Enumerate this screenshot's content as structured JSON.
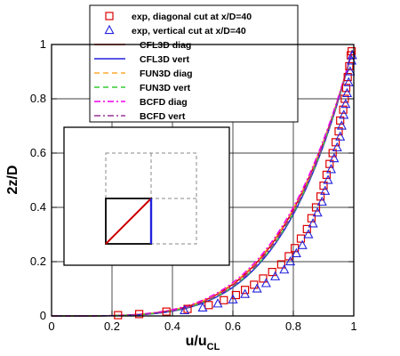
{
  "chart_data": {
    "type": "line",
    "xlabel": "u/u",
    "xlabel_sub": "CL",
    "ylabel": "2z/D",
    "xlim": [
      0,
      1
    ],
    "ylim": [
      0,
      1
    ],
    "xticks": [
      "0",
      "0.2",
      "0.4",
      "0.6",
      "0.8",
      "1"
    ],
    "yticks": [
      "0",
      "0.2",
      "0.4",
      "0.6",
      "0.8",
      "1"
    ],
    "grid": true,
    "legend_position": "top-center",
    "series": [
      {
        "name": "exp, diagonal cut at x/D=40",
        "kind": "markers",
        "marker": "square",
        "color": "#dd0000",
        "points": [
          [
            0.22,
            0.003
          ],
          [
            0.29,
            0.007
          ],
          [
            0.38,
            0.016
          ],
          [
            0.45,
            0.026
          ],
          [
            0.52,
            0.04
          ],
          [
            0.57,
            0.058
          ],
          [
            0.61,
            0.077
          ],
          [
            0.64,
            0.096
          ],
          [
            0.67,
            0.115
          ],
          [
            0.7,
            0.138
          ],
          [
            0.73,
            0.162
          ],
          [
            0.76,
            0.19
          ],
          [
            0.785,
            0.22
          ],
          [
            0.805,
            0.25
          ],
          [
            0.825,
            0.285
          ],
          [
            0.845,
            0.32
          ],
          [
            0.86,
            0.36
          ],
          [
            0.875,
            0.4
          ],
          [
            0.89,
            0.44
          ],
          [
            0.9,
            0.48
          ],
          [
            0.91,
            0.52
          ],
          [
            0.92,
            0.56
          ],
          [
            0.93,
            0.6
          ],
          [
            0.94,
            0.64
          ],
          [
            0.95,
            0.68
          ],
          [
            0.955,
            0.72
          ],
          [
            0.965,
            0.76
          ],
          [
            0.97,
            0.8
          ],
          [
            0.975,
            0.84
          ],
          [
            0.98,
            0.88
          ],
          [
            0.985,
            0.92
          ],
          [
            0.99,
            0.96
          ],
          [
            0.993,
            0.975
          ]
        ]
      },
      {
        "name": "exp, vertical cut at x/D=40",
        "kind": "markers",
        "marker": "triangle",
        "color": "#2222dd",
        "points": [
          [
            0.44,
            0.02
          ],
          [
            0.5,
            0.03
          ],
          [
            0.55,
            0.045
          ],
          [
            0.6,
            0.06
          ],
          [
            0.64,
            0.08
          ],
          [
            0.68,
            0.1
          ],
          [
            0.71,
            0.12
          ],
          [
            0.74,
            0.145
          ],
          [
            0.77,
            0.17
          ],
          [
            0.79,
            0.2
          ],
          [
            0.81,
            0.23
          ],
          [
            0.83,
            0.26
          ],
          [
            0.85,
            0.3
          ],
          [
            0.865,
            0.34
          ],
          [
            0.88,
            0.38
          ],
          [
            0.895,
            0.42
          ],
          [
            0.905,
            0.46
          ],
          [
            0.915,
            0.5
          ],
          [
            0.925,
            0.54
          ],
          [
            0.935,
            0.58
          ],
          [
            0.945,
            0.62
          ],
          [
            0.955,
            0.66
          ],
          [
            0.96,
            0.7
          ],
          [
            0.967,
            0.74
          ],
          [
            0.973,
            0.78
          ],
          [
            0.978,
            0.82
          ],
          [
            0.983,
            0.86
          ],
          [
            0.988,
            0.9
          ],
          [
            0.993,
            0.94
          ],
          [
            0.995,
            0.96
          ]
        ]
      },
      {
        "name": "CFL3D diag",
        "kind": "line",
        "dash": "solid",
        "color": "#dd0000",
        "shape": 4.2,
        "xmin": 0.0,
        "xmax": 0.995
      },
      {
        "name": "CFL3D vert",
        "kind": "line",
        "dash": "solid",
        "color": "#2222dd",
        "shape": 4.4,
        "xmin": 0.0,
        "xmax": 0.995
      },
      {
        "name": "FUN3D diag",
        "kind": "line",
        "dash": "dashed",
        "color": "#ffaa33",
        "shape": 4.15,
        "xmin": 0.0,
        "xmax": 0.995
      },
      {
        "name": "FUN3D vert",
        "kind": "line",
        "dash": "dashed",
        "color": "#33cc33",
        "shape": 4.35,
        "xmin": 0.0,
        "xmax": 0.995
      },
      {
        "name": "BCFD diag",
        "kind": "line",
        "dash": "dashdot",
        "color": "#ee00ee",
        "shape": 4.1,
        "xmin": 0.0,
        "xmax": 0.995
      },
      {
        "name": "BCFD vert",
        "kind": "line",
        "dash": "dashdot",
        "color": "#993399",
        "shape": 4.3,
        "xmin": 0.0,
        "xmax": 0.995
      }
    ],
    "inset": {
      "content": "schematic",
      "cut_lines": [
        "diagonal",
        "vertical"
      ],
      "colors": [
        "#cc0000",
        "#2222dd"
      ]
    }
  }
}
